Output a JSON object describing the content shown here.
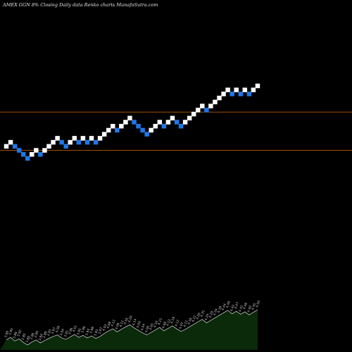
{
  "header": {
    "left": "AMEX GGN 8% Closing Daily data Renko charts MunafaSutra.com",
    "right": ""
  },
  "chart_data": {
    "type": "renko",
    "title": "AMEX GGN 8% Closing Daily data Renko charts MunafaSutra.com",
    "colors": {
      "up": "#ffffff",
      "down": "#1f77e8",
      "reference_line": "#b85c00",
      "volume_fill": "#0a2a0a",
      "volume_line": "#ffffff",
      "label": "#cfcfcf"
    },
    "reference_lines": [
      4.43,
      4.24
    ],
    "bricks": [
      {
        "y": 4.26,
        "dir": "up"
      },
      {
        "y": 4.28,
        "dir": "up"
      },
      {
        "y": 4.26,
        "dir": "down"
      },
      {
        "y": 4.24,
        "dir": "down"
      },
      {
        "y": 4.22,
        "dir": "down"
      },
      {
        "y": 4.2,
        "dir": "down"
      },
      {
        "y": 4.22,
        "dir": "up"
      },
      {
        "y": 4.24,
        "dir": "up"
      },
      {
        "y": 4.22,
        "dir": "down"
      },
      {
        "y": 4.24,
        "dir": "up"
      },
      {
        "y": 4.26,
        "dir": "up"
      },
      {
        "y": 4.28,
        "dir": "up"
      },
      {
        "y": 4.3,
        "dir": "up"
      },
      {
        "y": 4.28,
        "dir": "down"
      },
      {
        "y": 4.26,
        "dir": "down"
      },
      {
        "y": 4.28,
        "dir": "up"
      },
      {
        "y": 4.3,
        "dir": "up"
      },
      {
        "y": 4.28,
        "dir": "down"
      },
      {
        "y": 4.3,
        "dir": "up"
      },
      {
        "y": 4.28,
        "dir": "down"
      },
      {
        "y": 4.3,
        "dir": "up"
      },
      {
        "y": 4.28,
        "dir": "down"
      },
      {
        "y": 4.3,
        "dir": "up"
      },
      {
        "y": 4.32,
        "dir": "up"
      },
      {
        "y": 4.34,
        "dir": "up"
      },
      {
        "y": 4.36,
        "dir": "up"
      },
      {
        "y": 4.34,
        "dir": "down"
      },
      {
        "y": 4.36,
        "dir": "up"
      },
      {
        "y": 4.38,
        "dir": "up"
      },
      {
        "y": 4.4,
        "dir": "up"
      },
      {
        "y": 4.38,
        "dir": "down"
      },
      {
        "y": 4.36,
        "dir": "down"
      },
      {
        "y": 4.34,
        "dir": "down"
      },
      {
        "y": 4.32,
        "dir": "down"
      },
      {
        "y": 4.34,
        "dir": "up"
      },
      {
        "y": 4.36,
        "dir": "up"
      },
      {
        "y": 4.38,
        "dir": "up"
      },
      {
        "y": 4.36,
        "dir": "down"
      },
      {
        "y": 4.38,
        "dir": "up"
      },
      {
        "y": 4.4,
        "dir": "up"
      },
      {
        "y": 4.38,
        "dir": "down"
      },
      {
        "y": 4.36,
        "dir": "down"
      },
      {
        "y": 4.38,
        "dir": "up"
      },
      {
        "y": 4.4,
        "dir": "up"
      },
      {
        "y": 4.42,
        "dir": "up"
      },
      {
        "y": 4.44,
        "dir": "up"
      },
      {
        "y": 4.46,
        "dir": "up"
      },
      {
        "y": 4.44,
        "dir": "down"
      },
      {
        "y": 4.46,
        "dir": "up"
      },
      {
        "y": 4.48,
        "dir": "up"
      },
      {
        "y": 4.5,
        "dir": "up"
      },
      {
        "y": 4.52,
        "dir": "up"
      },
      {
        "y": 4.54,
        "dir": "up"
      },
      {
        "y": 4.52,
        "dir": "down"
      },
      {
        "y": 4.54,
        "dir": "up"
      },
      {
        "y": 4.52,
        "dir": "down"
      },
      {
        "y": 4.54,
        "dir": "up"
      },
      {
        "y": 4.52,
        "dir": "down"
      },
      {
        "y": 4.54,
        "dir": "up"
      },
      {
        "y": 4.56,
        "dir": "up"
      }
    ],
    "volume_labels": [
      "3.90",
      "3.95",
      "3.88",
      "3.92",
      "3.85",
      "3.80",
      "3.86",
      "3.90",
      "3.84",
      "3.89",
      "3.93",
      "3.97",
      "4.00",
      "3.94",
      "3.91",
      "3.96",
      "4.01",
      "3.95",
      "3.99",
      "3.94",
      "3.98",
      "3.93",
      "3.97",
      "4.03",
      "4.08",
      "4.12",
      "4.06",
      "4.11",
      "4.16",
      "4.20",
      "4.14",
      "4.09",
      "4.04",
      "4.00",
      "4.05",
      "4.10",
      "4.15",
      "4.08",
      "4.13",
      "4.18",
      "4.12",
      "4.07",
      "4.11",
      "4.16",
      "4.21",
      "4.26",
      "4.31",
      "4.24",
      "4.29",
      "4.34",
      "4.39",
      "4.44",
      "4.49",
      "4.42",
      "4.47",
      "4.41",
      "4.46",
      "4.40",
      "4.45",
      "4.50"
    ]
  }
}
